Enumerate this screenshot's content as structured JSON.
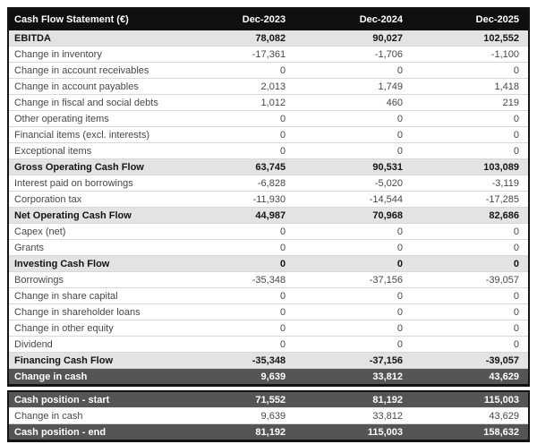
{
  "main_table": {
    "title": "Cash Flow Statement (€)",
    "columns": [
      "Dec-2023",
      "Dec-2024",
      "Dec-2025"
    ],
    "rows": [
      {
        "label": "EBITDA",
        "values": [
          "78,082",
          "90,027",
          "102,552"
        ],
        "style": "subtotal"
      },
      {
        "label": "Change in inventory",
        "values": [
          "-17,361",
          "-1,706",
          "-1,100"
        ],
        "style": "normal"
      },
      {
        "label": "Change in account receivables",
        "values": [
          "0",
          "0",
          "0"
        ],
        "style": "normal"
      },
      {
        "label": "Change in account payables",
        "values": [
          "2,013",
          "1,749",
          "1,418"
        ],
        "style": "normal"
      },
      {
        "label": "Change in fiscal and social debts",
        "values": [
          "1,012",
          "460",
          "219"
        ],
        "style": "normal"
      },
      {
        "label": "Other operating items",
        "values": [
          "0",
          "0",
          "0"
        ],
        "style": "normal"
      },
      {
        "label": "Financial items (excl. interests)",
        "values": [
          "0",
          "0",
          "0"
        ],
        "style": "normal"
      },
      {
        "label": "Exceptional items",
        "values": [
          "0",
          "0",
          "0"
        ],
        "style": "normal"
      },
      {
        "label": "Gross Operating Cash Flow",
        "values": [
          "63,745",
          "90,531",
          "103,089"
        ],
        "style": "subtotal"
      },
      {
        "label": "Interest paid on borrowings",
        "values": [
          "-6,828",
          "-5,020",
          "-3,119"
        ],
        "style": "normal"
      },
      {
        "label": "Corporation tax",
        "values": [
          "-11,930",
          "-14,544",
          "-17,285"
        ],
        "style": "normal"
      },
      {
        "label": "Net Operating Cash Flow",
        "values": [
          "44,987",
          "70,968",
          "82,686"
        ],
        "style": "subtotal"
      },
      {
        "label": "Capex (net)",
        "values": [
          "0",
          "0",
          "0"
        ],
        "style": "normal"
      },
      {
        "label": "Grants",
        "values": [
          "0",
          "0",
          "0"
        ],
        "style": "normal"
      },
      {
        "label": "Investing Cash Flow",
        "values": [
          "0",
          "0",
          "0"
        ],
        "style": "subtotal"
      },
      {
        "label": "Borrowings",
        "values": [
          "-35,348",
          "-37,156",
          "-39,057"
        ],
        "style": "normal"
      },
      {
        "label": "Change in share capital",
        "values": [
          "0",
          "0",
          "0"
        ],
        "style": "normal"
      },
      {
        "label": "Change in shareholder loans",
        "values": [
          "0",
          "0",
          "0"
        ],
        "style": "normal"
      },
      {
        "label": "Change in other equity",
        "values": [
          "0",
          "0",
          "0"
        ],
        "style": "normal"
      },
      {
        "label": "Dividend",
        "values": [
          "0",
          "0",
          "0"
        ],
        "style": "normal"
      },
      {
        "label": "Financing Cash Flow",
        "values": [
          "-35,348",
          "-37,156",
          "-39,057"
        ],
        "style": "subtotal"
      },
      {
        "label": "Change in cash",
        "values": [
          "9,639",
          "33,812",
          "43,629"
        ],
        "style": "dark"
      }
    ]
  },
  "summary_table": {
    "rows": [
      {
        "label": "Cash position - start",
        "values": [
          "71,552",
          "81,192",
          "115,003"
        ],
        "style": "dark"
      },
      {
        "label": "Change in cash",
        "values": [
          "9,639",
          "33,812",
          "43,629"
        ],
        "style": "normal"
      },
      {
        "label": "Cash position - end",
        "values": [
          "81,192",
          "115,003",
          "158,632"
        ],
        "style": "dark"
      }
    ]
  },
  "colors": {
    "header_bg": "#101010",
    "header_text": "#ffffff",
    "subtotal_bg": "#e3e3e3",
    "dark_row_bg": "#555555",
    "row_border": "#d8d8d8",
    "outer_border": "#141414"
  }
}
